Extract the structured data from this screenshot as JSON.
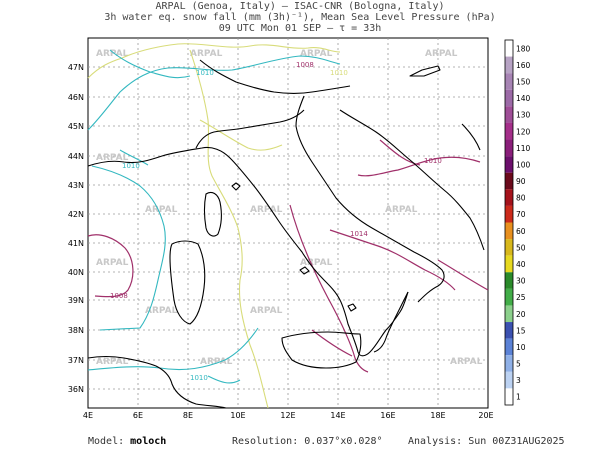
{
  "header": {
    "line1": "ARPAL (Genoa, Italy)  —  ISAC-CNR (Bologna, Italy)",
    "line2": "3h water eq. snow fall (mm (3h)⁻¹), Mean Sea Level Pressure (hPa)",
    "line3": "09 UTC Mon 01 SEP  —  τ = 33h"
  },
  "map": {
    "lat_labels": [
      "47N",
      "46N",
      "45N",
      "44N",
      "43N",
      "42N",
      "41N",
      "40N",
      "39N",
      "38N",
      "37N",
      "36N"
    ],
    "lon_labels": [
      "4E",
      "6E",
      "8E",
      "10E",
      "12E",
      "14E",
      "16E",
      "18E",
      "20E"
    ],
    "watermark": "ARPAL",
    "isobar_labels": [
      "1010",
      "1008",
      "1010",
      "1010",
      "1014",
      "1008",
      "1010",
      "1010"
    ],
    "colors": {
      "isobar_cyan": "#33b8c0",
      "isobar_yellow": "#d8dc7a",
      "isobar_purple": "#a0306a",
      "coast": "#000000",
      "grid": "#9a9a9a"
    }
  },
  "colorbar": {
    "labels": [
      "180",
      "160",
      "150",
      "140",
      "130",
      "120",
      "110",
      "100",
      "90",
      "80",
      "70",
      "60",
      "50",
      "40",
      "30",
      "25",
      "20",
      "15",
      "10",
      "5",
      "3",
      "1"
    ],
    "colors": [
      "#ffffff",
      "#b7a3c4",
      "#a784b4",
      "#9c6aa7",
      "#9f4e97",
      "#a52f8a",
      "#8a1e7a",
      "#6c0f6c",
      "#6b0a1c",
      "#a5121b",
      "#cc2a1b",
      "#e8901f",
      "#d8b81c",
      "#e7d920",
      "#2a8a2a",
      "#42ad48",
      "#8cd08c",
      "#3b51b0",
      "#5b82d6",
      "#8fb0e7",
      "#bcd2f2",
      "#ffffff"
    ]
  },
  "footer": {
    "model_label": "Model:",
    "model_value": "moloch",
    "resolution": "Resolution: 0.037°x0.028°",
    "analysis": "Analysis: Sun 00Z31AUG2025"
  }
}
